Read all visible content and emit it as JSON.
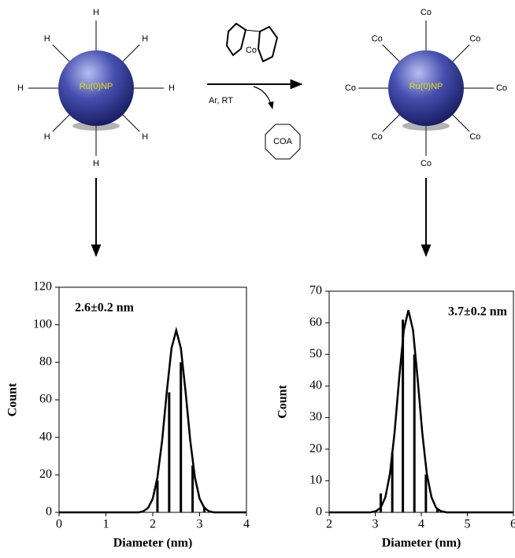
{
  "scheme": {
    "left_particle": {
      "label": "Ru(0)NP",
      "ligands": [
        "H",
        "H",
        "H",
        "H",
        "H",
        "H",
        "H",
        "H"
      ]
    },
    "right_particle": {
      "label": "Ru(0)NP",
      "ligands": [
        "Co",
        "Co",
        "Co",
        "Co",
        "Co",
        "Co",
        "Co",
        "Co"
      ]
    },
    "catalyst": "Co",
    "conditions": "Ar, RT",
    "byproduct": "COA"
  },
  "chart_data": [
    {
      "type": "bar",
      "annotation": "2.6±0.2 nm",
      "x_label": "Diameter (nm)",
      "y_label": "Count",
      "color": "#000000",
      "x": [
        2.1,
        2.35,
        2.6,
        2.85,
        3.1
      ],
      "values": [
        17,
        64,
        80,
        25,
        3
      ],
      "fit_x": [
        0,
        1.7,
        1.8,
        1.9,
        2.0,
        2.1,
        2.2,
        2.3,
        2.4,
        2.5,
        2.6,
        2.7,
        2.8,
        2.9,
        3.0,
        3.1,
        3.2,
        3.3,
        4
      ],
      "fit_values": [
        0,
        0,
        0.6,
        2.4,
        7.3,
        18.6,
        38.3,
        64.2,
        87.5,
        97,
        87.5,
        64.2,
        38.3,
        18.6,
        7.3,
        2.4,
        0.6,
        0,
        0
      ],
      "xlim": [
        0,
        4
      ],
      "xticks": [
        0,
        1,
        2,
        3,
        4
      ],
      "ylim": [
        0,
        120
      ],
      "yticks": [
        0,
        20,
        40,
        60,
        80,
        100,
        120
      ]
    },
    {
      "type": "bar",
      "annotation": "3.7±0.2 nm",
      "x_label": "Diameter (nm)",
      "y_label": "Count",
      "color": "#000000",
      "x": [
        3.12,
        3.37,
        3.6,
        3.85,
        4.1,
        4.35
      ],
      "values": [
        6,
        19,
        61,
        50,
        12,
        1
      ],
      "fit_x": [
        2,
        2.9,
        3.02,
        3.12,
        3.22,
        3.32,
        3.42,
        3.52,
        3.62,
        3.72,
        3.82,
        3.92,
        4.02,
        4.12,
        4.22,
        4.32,
        4.42,
        4.55,
        6
      ],
      "fit_values": [
        0,
        0,
        0.4,
        1.5,
        4.8,
        12.2,
        25.3,
        42.4,
        57.7,
        64,
        57.7,
        42.4,
        25.3,
        12.2,
        4.8,
        1.5,
        0.4,
        0,
        0
      ],
      "xlim": [
        2,
        6
      ],
      "xticks": [
        2,
        3,
        4,
        5,
        6
      ],
      "ylim": [
        0,
        70
      ],
      "yticks": [
        0,
        10,
        20,
        30,
        40,
        50,
        60,
        70
      ]
    }
  ]
}
